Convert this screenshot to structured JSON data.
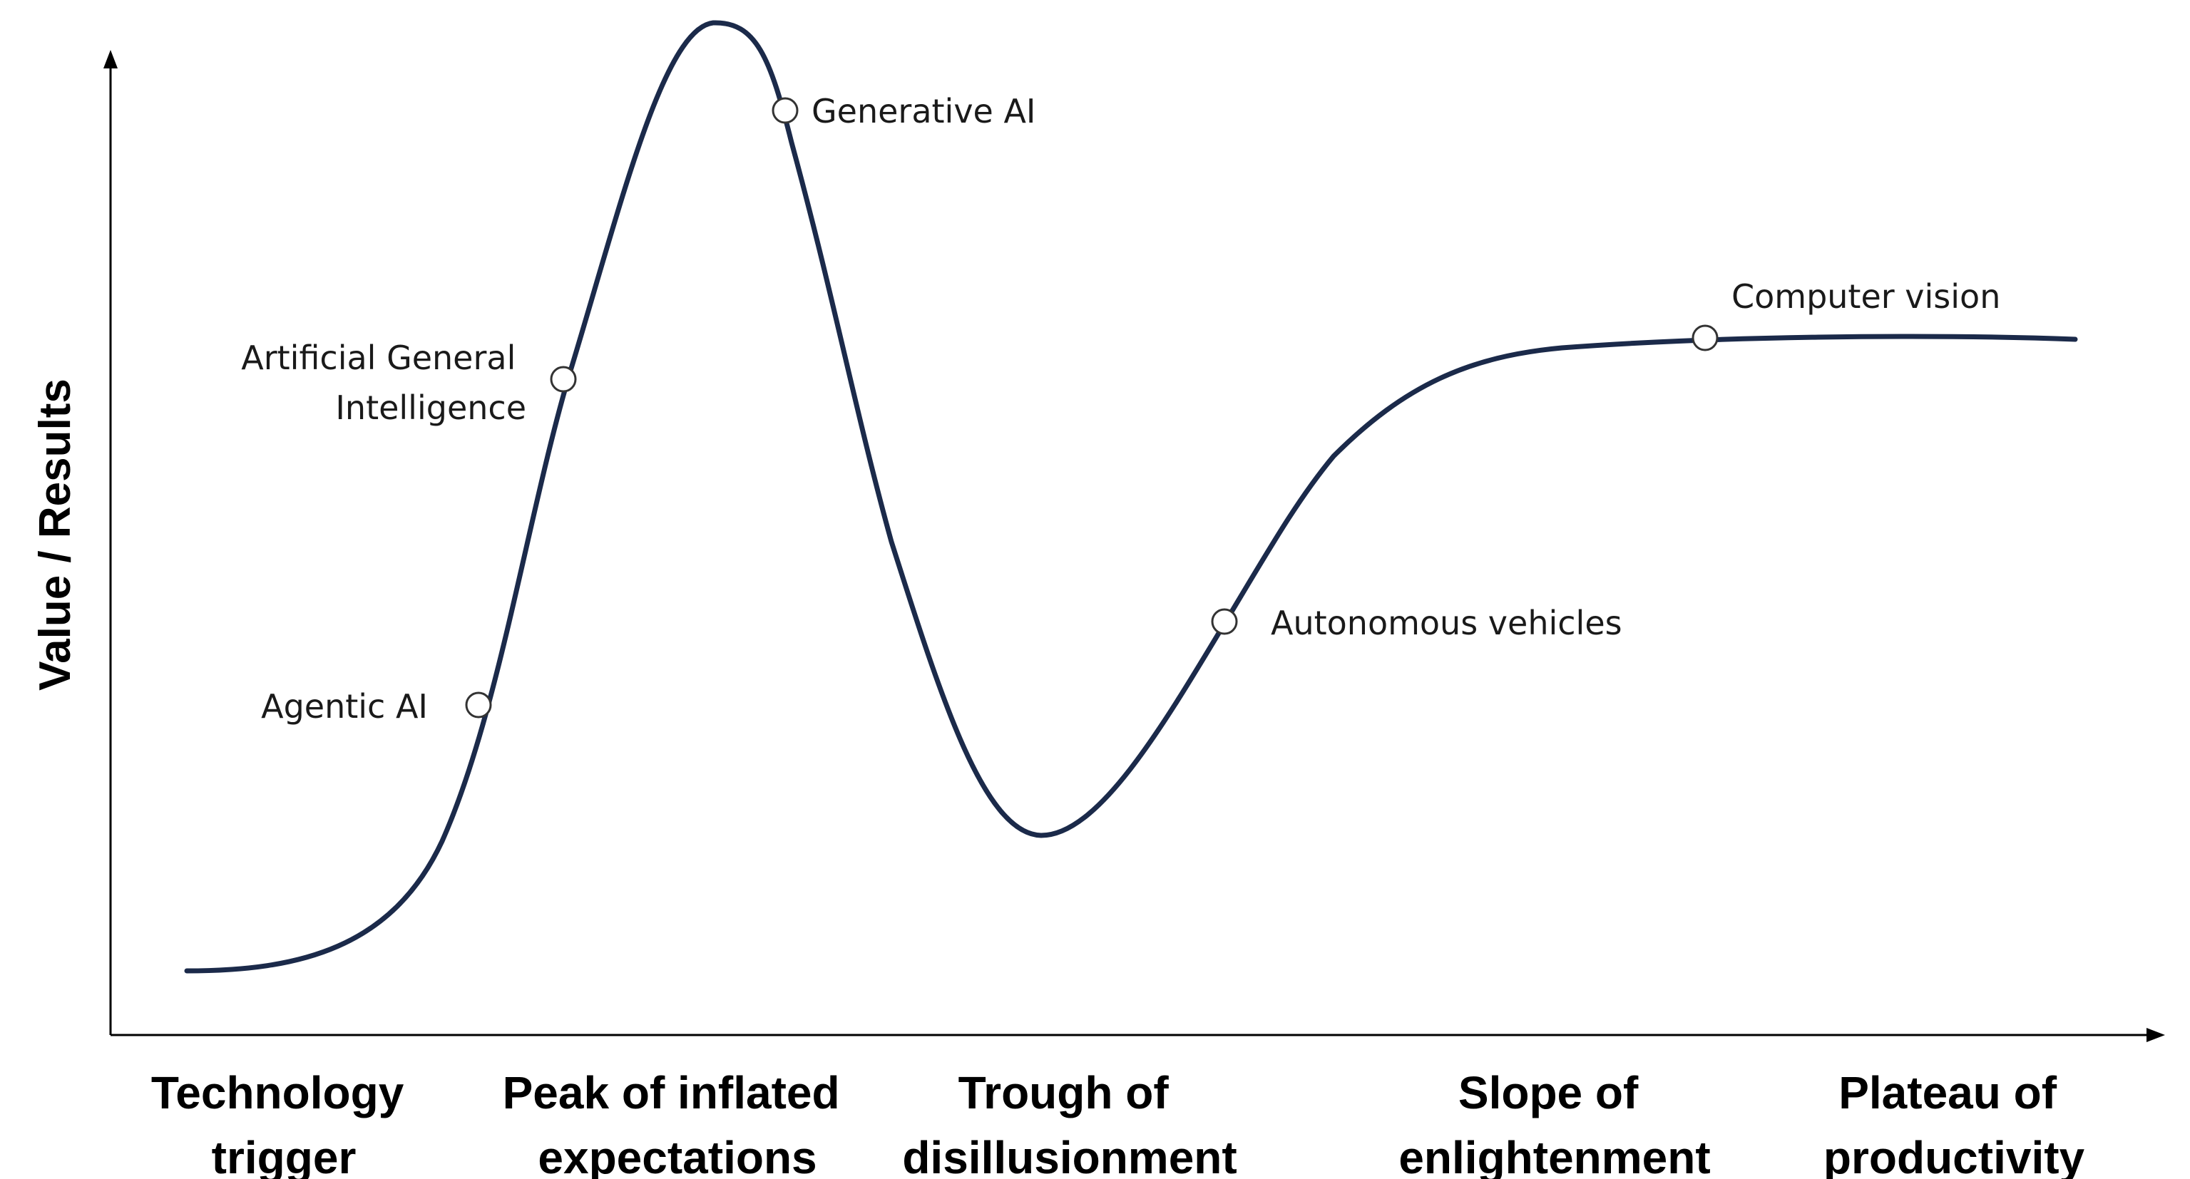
{
  "diagram": {
    "y_axis_title": "Value / Results",
    "phases": [
      {
        "id": "technology-trigger",
        "lines": [
          "Technology",
          "trigger"
        ]
      },
      {
        "id": "peak-of-inflated-expectations",
        "lines": [
          "Peak of inflated",
          "expectations"
        ]
      },
      {
        "id": "trough-of-disillusionment",
        "lines": [
          "Trough of",
          "disillusionment"
        ]
      },
      {
        "id": "slope-of-enlightenment",
        "lines": [
          "Slope of",
          "enlightenment"
        ]
      },
      {
        "id": "plateau-of-productivity",
        "lines": [
          "Plateau of",
          "productivity"
        ]
      }
    ],
    "points": [
      {
        "id": "agentic-ai",
        "lines": [
          "Agentic AI"
        ]
      },
      {
        "id": "artificial-general-intelligence",
        "lines": [
          "Artificial General",
          "Intelligence"
        ]
      },
      {
        "id": "generative-ai",
        "lines": [
          "Generative AI"
        ]
      },
      {
        "id": "autonomous-vehicles",
        "lines": [
          "Autonomous vehicles"
        ]
      },
      {
        "id": "computer-vision",
        "lines": [
          "Computer vision"
        ]
      }
    ],
    "colors": {
      "curve": "#1b2a4a",
      "axis": "#000000",
      "marker_fill": "#ffffff",
      "marker_stroke": "#333333"
    }
  }
}
